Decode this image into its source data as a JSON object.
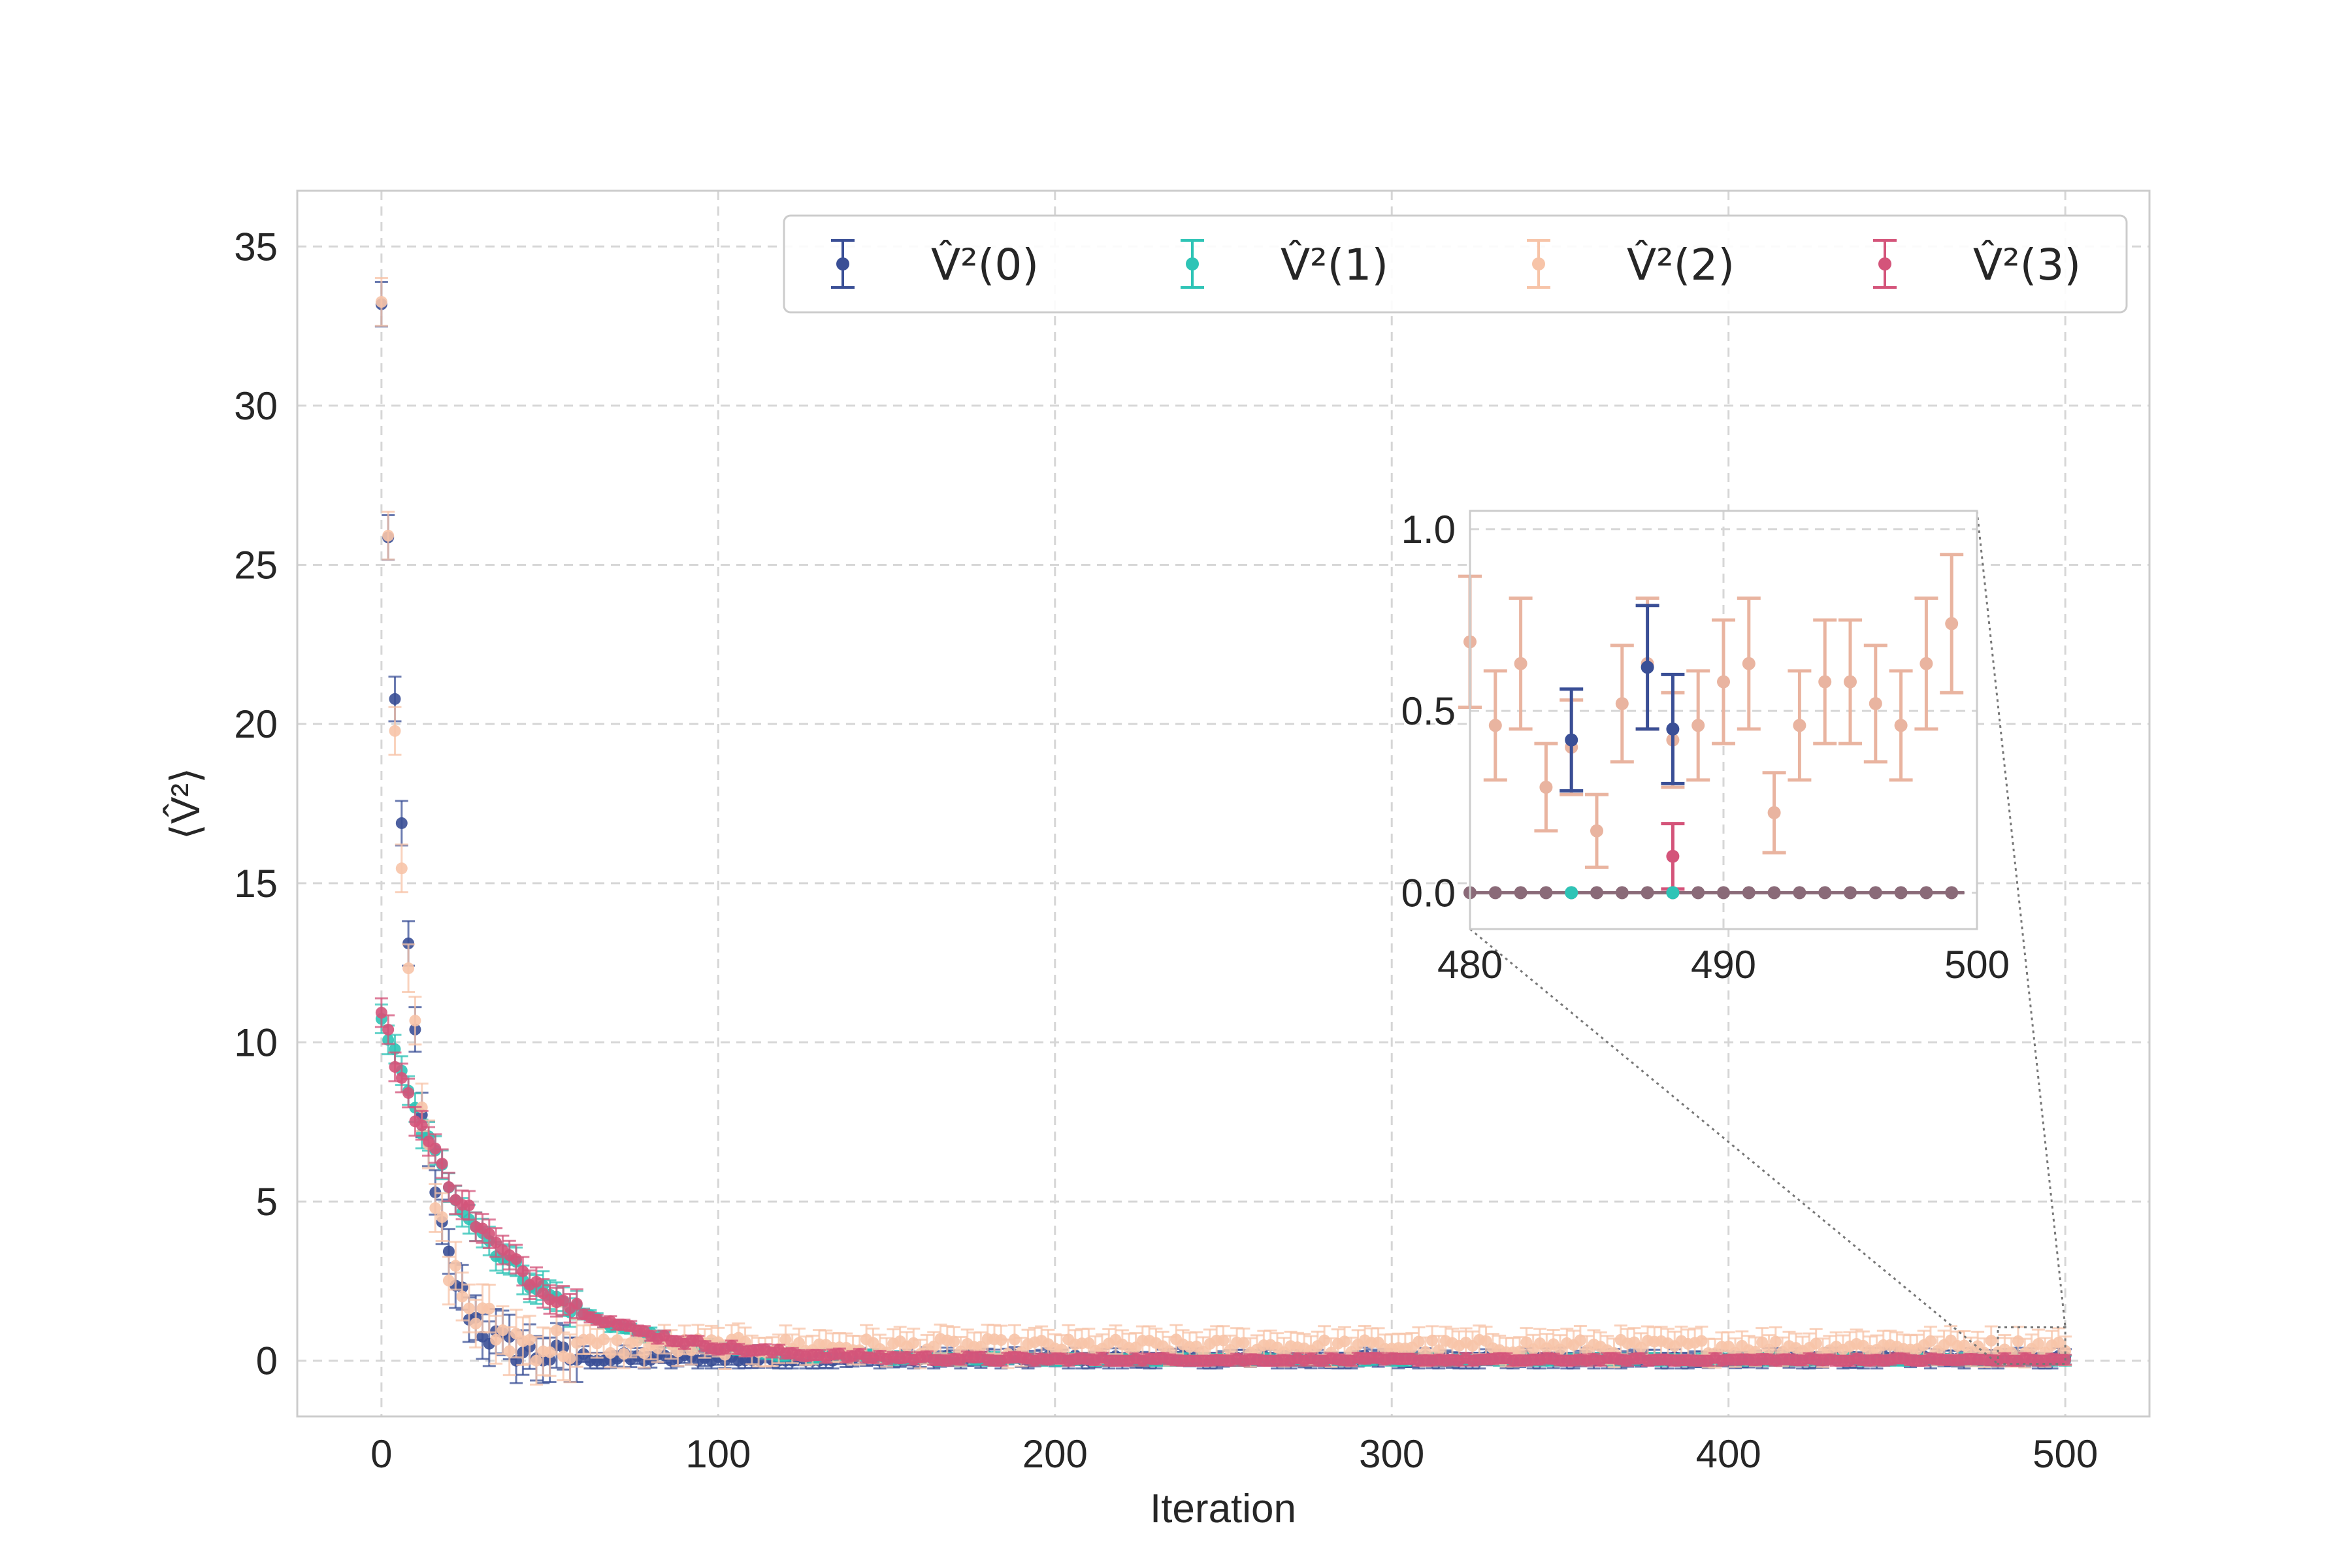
{
  "chart_data": {
    "type": "scatter",
    "subtype": "errorbar",
    "title": "",
    "xlabel": "Iteration",
    "ylabel": "⟨V̂²⟩",
    "xlim": [
      -25,
      525
    ],
    "ylim": [
      -1.75,
      36.75
    ],
    "xticks": [
      "0",
      "100",
      "200",
      "300",
      "400",
      "500"
    ],
    "yticks": [
      "0",
      "5",
      "10",
      "15",
      "20",
      "25",
      "30",
      "35"
    ],
    "grid": true,
    "legend_position": "top",
    "series": [
      {
        "name": "V̂²(0)",
        "color": "#3a4f96",
        "start": 33.0,
        "decay": 8.5,
        "floor": 0.05,
        "noise": 0.6,
        "err": 0.7
      },
      {
        "name": "V̂²(1)",
        "color": "#2ec4b6",
        "start": 10.9,
        "decay": 30,
        "floor": 0.02,
        "noise": 0.35,
        "err": 0.45
      },
      {
        "name": "V̂²(2)",
        "color": "#f7c4a8",
        "start": 33.5,
        "decay": 8.0,
        "floor": 0.45,
        "noise": 0.7,
        "err": 0.75
      },
      {
        "name": "V̂²(3)",
        "color": "#d4547a",
        "start": 10.8,
        "decay": 31,
        "floor": 0.02,
        "noise": 0.35,
        "err": 0.45
      }
    ],
    "inset": {
      "xlim": [
        480,
        500
      ],
      "ylim": [
        -0.1,
        1.05
      ],
      "xticks": [
        "480",
        "490",
        "500"
      ],
      "yticks": [
        "0.0",
        "0.5",
        "1.0"
      ],
      "series_2_points": [
        {
          "x": 480,
          "y": 0.69,
          "err": 0.18
        },
        {
          "x": 481,
          "y": 0.46,
          "err": 0.15
        },
        {
          "x": 482,
          "y": 0.63,
          "err": 0.18
        },
        {
          "x": 483,
          "y": 0.29,
          "err": 0.12
        },
        {
          "x": 484,
          "y": 0.4,
          "err": 0.13
        },
        {
          "x": 485,
          "y": 0.17,
          "err": 0.1
        },
        {
          "x": 486,
          "y": 0.52,
          "err": 0.16
        },
        {
          "x": 487,
          "y": 0.63,
          "err": 0.18
        },
        {
          "x": 488,
          "y": 0.42,
          "err": 0.13
        },
        {
          "x": 489,
          "y": 0.46,
          "err": 0.15
        },
        {
          "x": 490,
          "y": 0.58,
          "err": 0.17
        },
        {
          "x": 491,
          "y": 0.63,
          "err": 0.18
        },
        {
          "x": 492,
          "y": 0.22,
          "err": 0.11
        },
        {
          "x": 493,
          "y": 0.46,
          "err": 0.15
        },
        {
          "x": 494,
          "y": 0.58,
          "err": 0.17
        },
        {
          "x": 495,
          "y": 0.58,
          "err": 0.17
        },
        {
          "x": 496,
          "y": 0.52,
          "err": 0.16
        },
        {
          "x": 497,
          "y": 0.46,
          "err": 0.15
        },
        {
          "x": 498,
          "y": 0.63,
          "err": 0.18
        },
        {
          "x": 499,
          "y": 0.74,
          "err": 0.19
        }
      ],
      "series_0_points": [
        {
          "x": 484,
          "y": 0.42,
          "err": 0.14
        },
        {
          "x": 487,
          "y": 0.62,
          "err": 0.17
        },
        {
          "x": 488,
          "y": 0.45,
          "err": 0.15
        }
      ],
      "series_3_points": [
        {
          "x": 488,
          "y": 0.1,
          "err": 0.09
        }
      ],
      "series_1_points": [
        {
          "x": 484,
          "y": 0.0,
          "err": 0.0
        },
        {
          "x": 488,
          "y": 0.0,
          "err": 0.0
        }
      ]
    }
  }
}
